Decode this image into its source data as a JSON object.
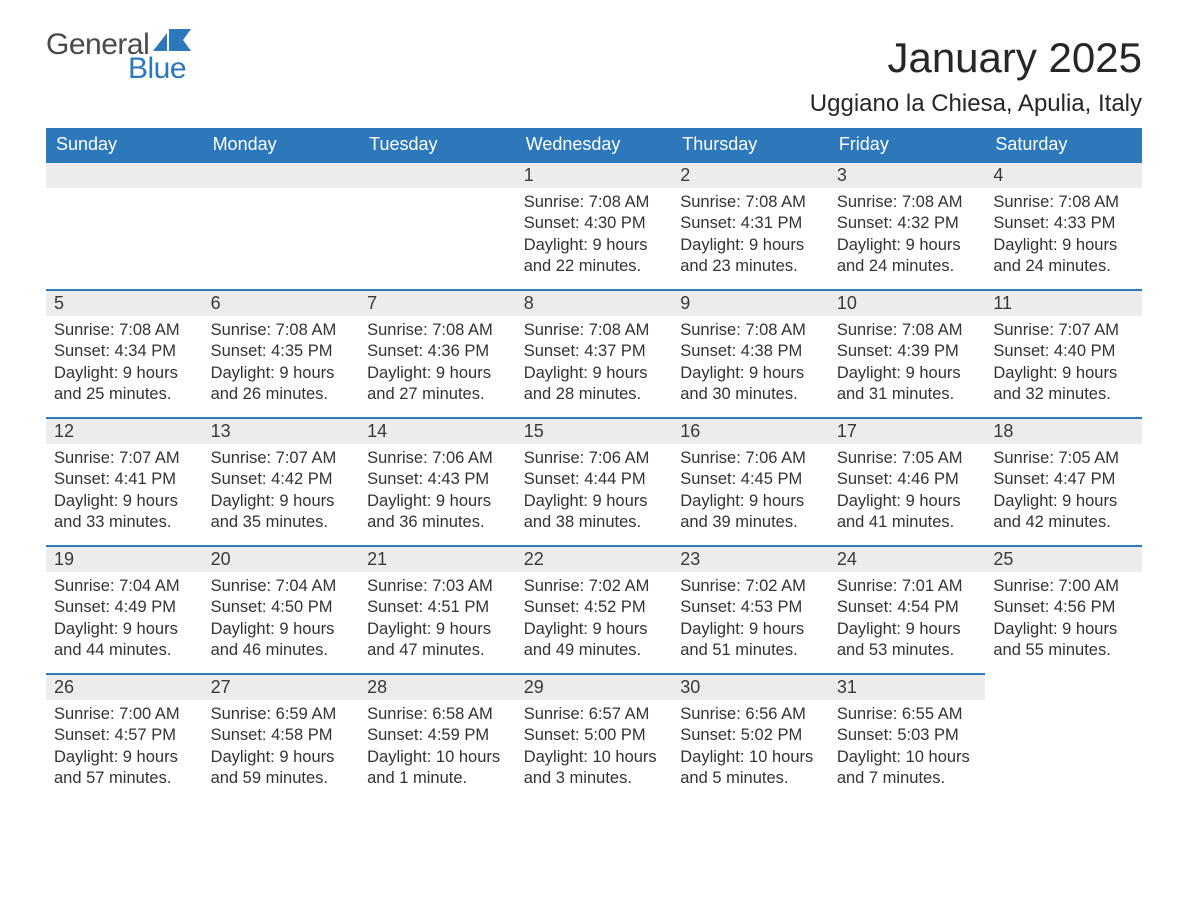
{
  "logo": {
    "general": "General",
    "blue": "Blue",
    "icon_color": "#2d78bb"
  },
  "title": "January 2025",
  "location": "Uggiano la Chiesa, Apulia, Italy",
  "colors": {
    "header_bg": "#2d78bb",
    "header_text": "#ffffff",
    "daynum_bg": "#ececec",
    "daynum_border": "#2d78bb",
    "body_text": "#333333",
    "page_bg": "#ffffff"
  },
  "fonts": {
    "title_pt": 42,
    "location_pt": 24,
    "th_pt": 18,
    "daynum_pt": 18,
    "cell_pt": 16.5,
    "family": "Arial"
  },
  "day_headers": [
    "Sunday",
    "Monday",
    "Tuesday",
    "Wednesday",
    "Thursday",
    "Friday",
    "Saturday"
  ],
  "weeks": [
    [
      {
        "day": "",
        "lines": []
      },
      {
        "day": "",
        "lines": []
      },
      {
        "day": "",
        "lines": []
      },
      {
        "day": "1",
        "lines": [
          "Sunrise: 7:08 AM",
          "Sunset: 4:30 PM",
          "Daylight: 9 hours and 22 minutes."
        ]
      },
      {
        "day": "2",
        "lines": [
          "Sunrise: 7:08 AM",
          "Sunset: 4:31 PM",
          "Daylight: 9 hours and 23 minutes."
        ]
      },
      {
        "day": "3",
        "lines": [
          "Sunrise: 7:08 AM",
          "Sunset: 4:32 PM",
          "Daylight: 9 hours and 24 minutes."
        ]
      },
      {
        "day": "4",
        "lines": [
          "Sunrise: 7:08 AM",
          "Sunset: 4:33 PM",
          "Daylight: 9 hours and 24 minutes."
        ]
      }
    ],
    [
      {
        "day": "5",
        "lines": [
          "Sunrise: 7:08 AM",
          "Sunset: 4:34 PM",
          "Daylight: 9 hours and 25 minutes."
        ]
      },
      {
        "day": "6",
        "lines": [
          "Sunrise: 7:08 AM",
          "Sunset: 4:35 PM",
          "Daylight: 9 hours and 26 minutes."
        ]
      },
      {
        "day": "7",
        "lines": [
          "Sunrise: 7:08 AM",
          "Sunset: 4:36 PM",
          "Daylight: 9 hours and 27 minutes."
        ]
      },
      {
        "day": "8",
        "lines": [
          "Sunrise: 7:08 AM",
          "Sunset: 4:37 PM",
          "Daylight: 9 hours and 28 minutes."
        ]
      },
      {
        "day": "9",
        "lines": [
          "Sunrise: 7:08 AM",
          "Sunset: 4:38 PM",
          "Daylight: 9 hours and 30 minutes."
        ]
      },
      {
        "day": "10",
        "lines": [
          "Sunrise: 7:08 AM",
          "Sunset: 4:39 PM",
          "Daylight: 9 hours and 31 minutes."
        ]
      },
      {
        "day": "11",
        "lines": [
          "Sunrise: 7:07 AM",
          "Sunset: 4:40 PM",
          "Daylight: 9 hours and 32 minutes."
        ]
      }
    ],
    [
      {
        "day": "12",
        "lines": [
          "Sunrise: 7:07 AM",
          "Sunset: 4:41 PM",
          "Daylight: 9 hours and 33 minutes."
        ]
      },
      {
        "day": "13",
        "lines": [
          "Sunrise: 7:07 AM",
          "Sunset: 4:42 PM",
          "Daylight: 9 hours and 35 minutes."
        ]
      },
      {
        "day": "14",
        "lines": [
          "Sunrise: 7:06 AM",
          "Sunset: 4:43 PM",
          "Daylight: 9 hours and 36 minutes."
        ]
      },
      {
        "day": "15",
        "lines": [
          "Sunrise: 7:06 AM",
          "Sunset: 4:44 PM",
          "Daylight: 9 hours and 38 minutes."
        ]
      },
      {
        "day": "16",
        "lines": [
          "Sunrise: 7:06 AM",
          "Sunset: 4:45 PM",
          "Daylight: 9 hours and 39 minutes."
        ]
      },
      {
        "day": "17",
        "lines": [
          "Sunrise: 7:05 AM",
          "Sunset: 4:46 PM",
          "Daylight: 9 hours and 41 minutes."
        ]
      },
      {
        "day": "18",
        "lines": [
          "Sunrise: 7:05 AM",
          "Sunset: 4:47 PM",
          "Daylight: 9 hours and 42 minutes."
        ]
      }
    ],
    [
      {
        "day": "19",
        "lines": [
          "Sunrise: 7:04 AM",
          "Sunset: 4:49 PM",
          "Daylight: 9 hours and 44 minutes."
        ]
      },
      {
        "day": "20",
        "lines": [
          "Sunrise: 7:04 AM",
          "Sunset: 4:50 PM",
          "Daylight: 9 hours and 46 minutes."
        ]
      },
      {
        "day": "21",
        "lines": [
          "Sunrise: 7:03 AM",
          "Sunset: 4:51 PM",
          "Daylight: 9 hours and 47 minutes."
        ]
      },
      {
        "day": "22",
        "lines": [
          "Sunrise: 7:02 AM",
          "Sunset: 4:52 PM",
          "Daylight: 9 hours and 49 minutes."
        ]
      },
      {
        "day": "23",
        "lines": [
          "Sunrise: 7:02 AM",
          "Sunset: 4:53 PM",
          "Daylight: 9 hours and 51 minutes."
        ]
      },
      {
        "day": "24",
        "lines": [
          "Sunrise: 7:01 AM",
          "Sunset: 4:54 PM",
          "Daylight: 9 hours and 53 minutes."
        ]
      },
      {
        "day": "25",
        "lines": [
          "Sunrise: 7:00 AM",
          "Sunset: 4:56 PM",
          "Daylight: 9 hours and 55 minutes."
        ]
      }
    ],
    [
      {
        "day": "26",
        "lines": [
          "Sunrise: 7:00 AM",
          "Sunset: 4:57 PM",
          "Daylight: 9 hours and 57 minutes."
        ]
      },
      {
        "day": "27",
        "lines": [
          "Sunrise: 6:59 AM",
          "Sunset: 4:58 PM",
          "Daylight: 9 hours and 59 minutes."
        ]
      },
      {
        "day": "28",
        "lines": [
          "Sunrise: 6:58 AM",
          "Sunset: 4:59 PM",
          "Daylight: 10 hours and 1 minute."
        ]
      },
      {
        "day": "29",
        "lines": [
          "Sunrise: 6:57 AM",
          "Sunset: 5:00 PM",
          "Daylight: 10 hours and 3 minutes."
        ]
      },
      {
        "day": "30",
        "lines": [
          "Sunrise: 6:56 AM",
          "Sunset: 5:02 PM",
          "Daylight: 10 hours and 5 minutes."
        ]
      },
      {
        "day": "31",
        "lines": [
          "Sunrise: 6:55 AM",
          "Sunset: 5:03 PM",
          "Daylight: 10 hours and 7 minutes."
        ]
      },
      {
        "day": "",
        "lines": []
      }
    ]
  ]
}
